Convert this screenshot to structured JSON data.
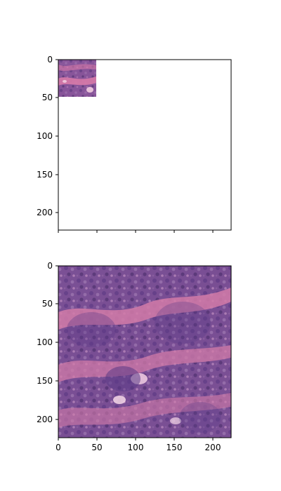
{
  "chart_data": [
    {
      "type": "image",
      "title": "",
      "xlabel": "",
      "ylabel": "",
      "xlim": [
        0,
        224
      ],
      "ylim": [
        224,
        0
      ],
      "inset_image_extent": {
        "x": [
          0,
          50
        ],
        "y": [
          0,
          50
        ]
      },
      "xticks": [
        {
          "value": 0,
          "label": ""
        },
        {
          "value": 50,
          "label": ""
        },
        {
          "value": 100,
          "label": ""
        },
        {
          "value": 150,
          "label": ""
        },
        {
          "value": 200,
          "label": ""
        }
      ],
      "yticks": [
        {
          "value": 0,
          "label": "0"
        },
        {
          "value": 50,
          "label": "50"
        },
        {
          "value": 100,
          "label": "100"
        },
        {
          "value": 150,
          "label": "150"
        },
        {
          "value": 200,
          "label": "200"
        }
      ],
      "image_colors": {
        "background": "#c66f9d",
        "tissue": "#6e4a91",
        "highlight": "#f4d4e6"
      }
    },
    {
      "type": "image",
      "title": "",
      "xlabel": "",
      "ylabel": "",
      "xlim": [
        0,
        224
      ],
      "ylim": [
        224,
        0
      ],
      "image_extent": {
        "x": [
          0,
          224
        ],
        "y": [
          0,
          224
        ]
      },
      "xticks": [
        {
          "value": 0,
          "label": "0"
        },
        {
          "value": 50,
          "label": "50"
        },
        {
          "value": 100,
          "label": "100"
        },
        {
          "value": 150,
          "label": "150"
        },
        {
          "value": 200,
          "label": "200"
        }
      ],
      "yticks": [
        {
          "value": 0,
          "label": "0"
        },
        {
          "value": 50,
          "label": "50"
        },
        {
          "value": 100,
          "label": "100"
        },
        {
          "value": 150,
          "label": "150"
        },
        {
          "value": 200,
          "label": "200"
        }
      ],
      "image_colors": {
        "background": "#d47aa6",
        "tissue": "#6e4a91",
        "highlight": "#f6d6e8"
      }
    }
  ]
}
